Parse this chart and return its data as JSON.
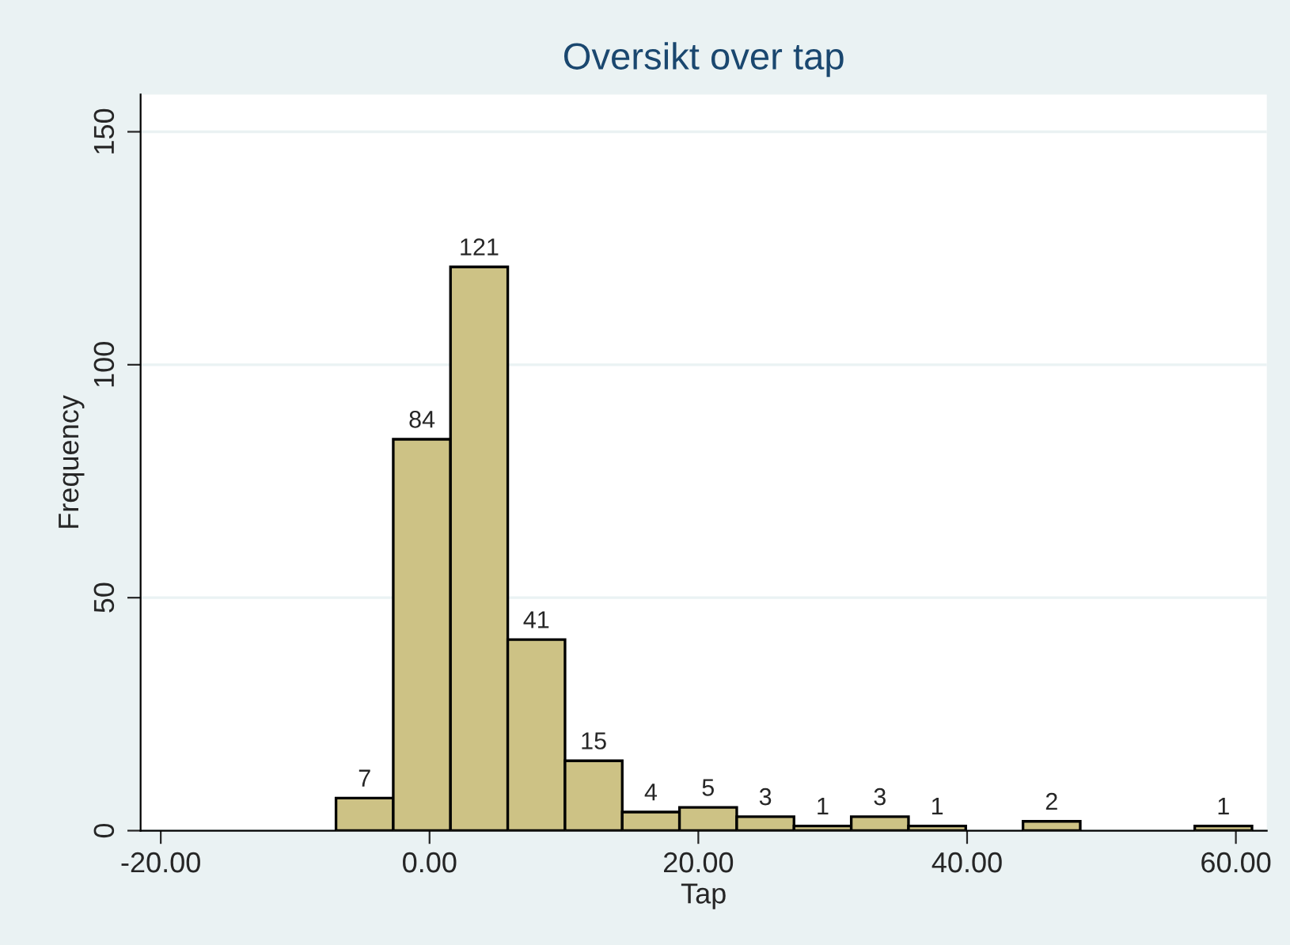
{
  "chart_data": {
    "type": "histogram",
    "title": "Oversikt over tap",
    "xlabel": "Tap",
    "ylabel": "Frequency",
    "bins": [
      -6.96,
      -2.7,
      1.56,
      5.82,
      10.08,
      14.34,
      18.6,
      22.86,
      27.12,
      31.38,
      35.64,
      39.9,
      44.16,
      48.42,
      52.68,
      56.94,
      61.2
    ],
    "values": [
      7,
      84,
      121,
      41,
      15,
      4,
      5,
      3,
      1,
      3,
      1,
      0,
      2,
      0,
      0,
      1
    ],
    "value_labels": [
      "7",
      "84",
      "121",
      "41",
      "15",
      "4",
      "5",
      "3",
      "1",
      "3",
      "1",
      null,
      "2",
      null,
      null,
      "1"
    ],
    "color": "#cdc285",
    "xlim": [
      -21.5,
      62.3
    ],
    "ylim": [
      0,
      158
    ],
    "xticks": [
      {
        "value": -20,
        "label": "-20.00"
      },
      {
        "value": 0,
        "label": "0.00"
      },
      {
        "value": 20,
        "label": "20.00"
      },
      {
        "value": 40,
        "label": "40.00"
      },
      {
        "value": 60,
        "label": "60.00"
      }
    ],
    "yticks": [
      0,
      50,
      100,
      150
    ],
    "grid": "y"
  }
}
